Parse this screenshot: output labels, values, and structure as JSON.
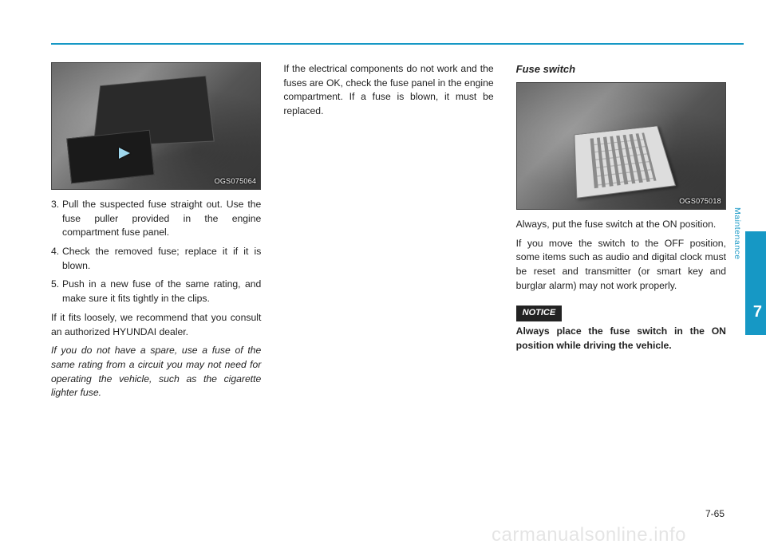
{
  "page": {
    "number": "7-65",
    "chapter_number": "7",
    "side_label": "Maintenance",
    "watermark": "carmanualsonline.info",
    "accent_color": "#1698c5"
  },
  "col1": {
    "image_code": "OGS075064",
    "steps": [
      {
        "num": "3.",
        "text": "Pull the suspected fuse straight out. Use the fuse puller provided in the engine compartment fuse panel."
      },
      {
        "num": "4.",
        "text": "Check the removed fuse; replace it if it is blown."
      },
      {
        "num": "5.",
        "text": "Push in a new fuse of the same rating, and make sure it fits tightly in the clips."
      }
    ],
    "para_loose": "If it fits loosely, we recommend that you consult an authorized HYUNDAI dealer.",
    "para_spare": "If you do not have a spare, use a fuse of the same rating from a circuit you may not need for operating the vehicle, such as the cigarette lighter fuse."
  },
  "col2": {
    "para": "If the electrical components do not work and the fuses are OK, check the fuse panel in the engine compartment. If a fuse is blown, it must be replaced."
  },
  "col3": {
    "heading": "Fuse switch",
    "image_code": "OGS075018",
    "para_on": "Always, put the fuse switch at the ON position.",
    "para_off": "If you move the switch to the OFF position, some items such as audio and digital clock must be reset and transmitter (or smart key and burglar alarm) may not work properly.",
    "notice_label": "NOTICE",
    "notice_text": "Always place the fuse switch in the ON position while driving the vehicle."
  }
}
